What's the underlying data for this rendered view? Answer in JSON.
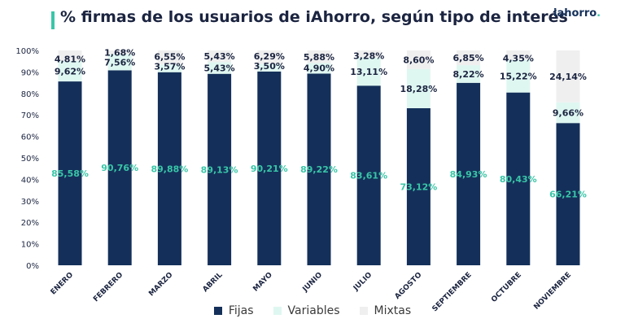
{
  "header": {
    "title": "% firmas de los usuarios de iAhorro, según tipo de interés",
    "logo": "iahorro",
    "logo_dot": ".",
    "accent_color": "#39c6a7"
  },
  "chart_data": {
    "type": "bar",
    "stacked": true,
    "title": "% firmas de los usuarios de iAhorro, según tipo de interés",
    "xlabel": "",
    "ylabel": "",
    "ylim": [
      0,
      100
    ],
    "y_ticks": [
      "0%",
      "10%",
      "20%",
      "30%",
      "40%",
      "50%",
      "60%",
      "70%",
      "80%",
      "90%",
      "100%"
    ],
    "categories": [
      "ENERO",
      "FEBRERO",
      "MARZO",
      "ABRIL",
      "MAYO",
      "JUNIO",
      "JULIO",
      "AGOSTO",
      "SEPTIEMBRE",
      "OCTUBRE",
      "NOVIEMBRE"
    ],
    "series": [
      {
        "name": "Fijas",
        "color": "#14305a",
        "values": [
          85.58,
          90.76,
          89.88,
          89.13,
          90.21,
          89.22,
          83.61,
          73.12,
          84.93,
          80.43,
          66.21
        ],
        "labels": [
          "85,58%",
          "90,76%",
          "89,88%",
          "89,13%",
          "90,21%",
          "89,22%",
          "83,61%",
          "73,12%",
          "84,93%",
          "80,43%",
          "66,21%"
        ]
      },
      {
        "name": "Variables",
        "color": "#dff7f1",
        "values": [
          9.62,
          7.56,
          3.57,
          5.43,
          3.5,
          4.9,
          13.11,
          18.28,
          8.22,
          15.22,
          9.66
        ],
        "labels": [
          "9,62%",
          "7,56%",
          "3,57%",
          "5,43%",
          "3,50%",
          "4,90%",
          "13,11%",
          "18,28%",
          "8,22%",
          "15,22%",
          "9,66%"
        ]
      },
      {
        "name": "Mixtas",
        "color": "#efefef",
        "values": [
          4.81,
          1.68,
          6.55,
          5.43,
          6.29,
          5.88,
          3.28,
          8.6,
          6.85,
          4.35,
          24.14
        ],
        "labels": [
          "4,81%",
          "1,68%",
          "6,55%",
          "5,43%",
          "6,29%",
          "5,88%",
          "3,28%",
          "8,60%",
          "6,85%",
          "4,35%",
          "24,14%"
        ]
      }
    ],
    "legend_position": "bottom",
    "grid": false
  }
}
